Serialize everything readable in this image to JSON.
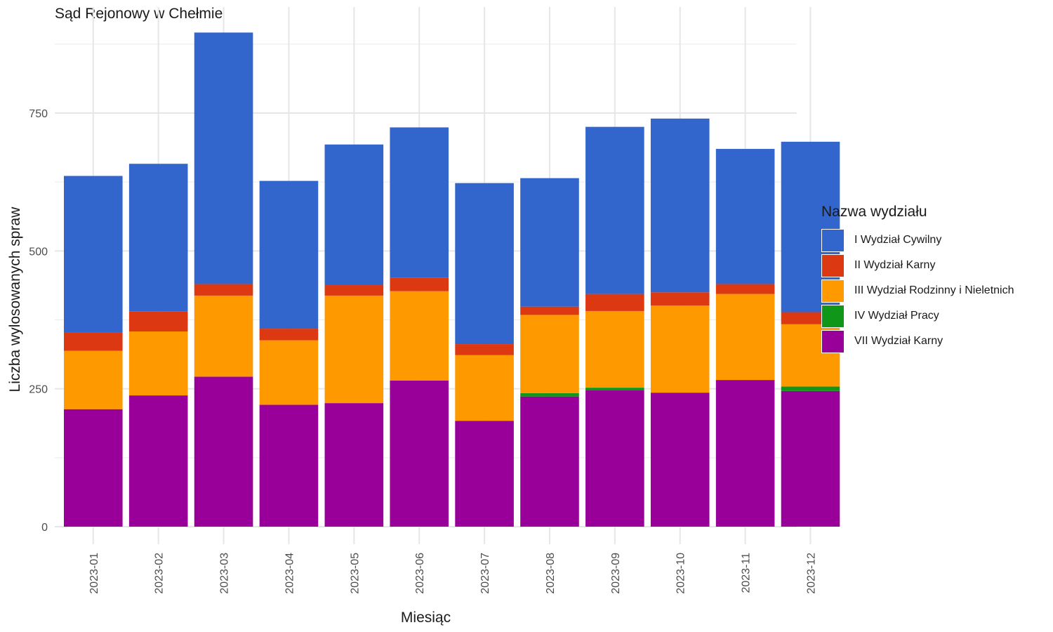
{
  "chart_data": {
    "type": "bar",
    "stacked": true,
    "title": "Sąd Rejonowy w Chełmie",
    "xlabel": "Miesiąc",
    "ylabel": "Liczba wylosowanych spraw",
    "ylim": [
      0,
      900
    ],
    "yticks": [
      0,
      250,
      500,
      750
    ],
    "grid": true,
    "legend_title": "Nazwa wydziału",
    "legend_position": "right",
    "categories": [
      "2023-01",
      "2023-02",
      "2023-03",
      "2023-04",
      "2023-05",
      "2023-06",
      "2023-07",
      "2023-08",
      "2023-09",
      "2023-10",
      "2023-11",
      "2023-12"
    ],
    "series": [
      {
        "name": "VII Wydział Karny",
        "color": "#990099",
        "values": [
          213,
          238,
          272,
          221,
          224,
          265,
          192,
          236,
          247,
          243,
          266,
          246
        ]
      },
      {
        "name": "IV Wydział Pracy",
        "color": "#109618",
        "values": [
          0,
          0,
          0,
          0,
          0,
          0,
          0,
          6,
          5,
          0,
          0,
          8
        ]
      },
      {
        "name": "III Wydział Rodzinny i Nieletnich",
        "color": "#FF9900",
        "values": [
          106,
          116,
          147,
          117,
          195,
          162,
          119,
          142,
          139,
          158,
          156,
          113
        ]
      },
      {
        "name": "II Wydział Karny",
        "color": "#DC3912",
        "values": [
          33,
          36,
          21,
          21,
          19,
          24,
          20,
          15,
          31,
          24,
          18,
          22
        ]
      },
      {
        "name": "I Wydział Cywilny",
        "color": "#3366CC",
        "values": [
          284,
          268,
          456,
          268,
          255,
          273,
          292,
          233,
          303,
          315,
          245,
          309
        ]
      }
    ]
  }
}
